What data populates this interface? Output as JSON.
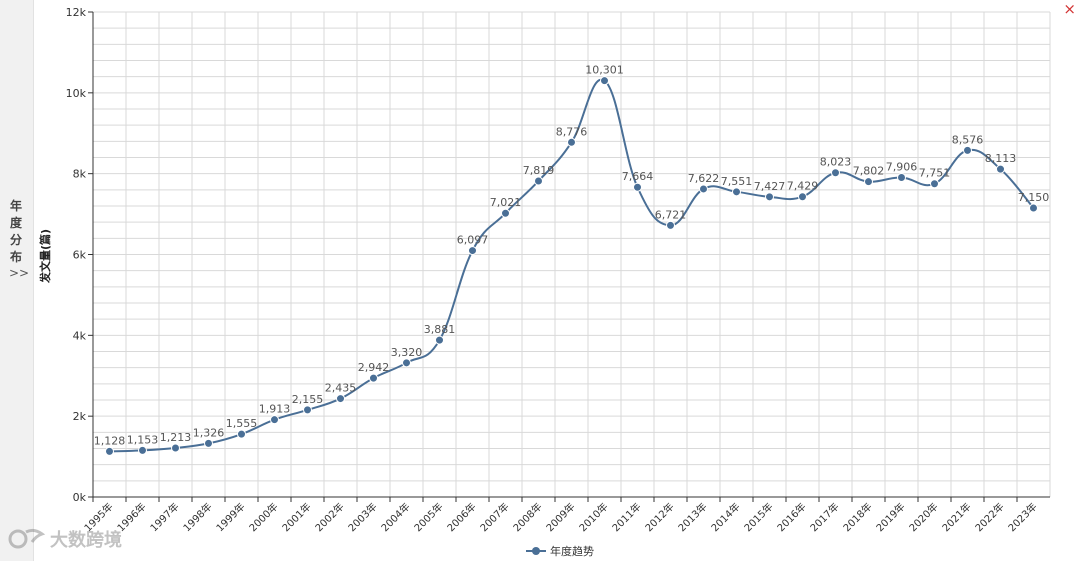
{
  "side_tab": {
    "label": "年度分布",
    "arrow": ">>"
  },
  "close_icon": "×",
  "watermark": {
    "icon": "logo-icon",
    "text": "大数跨境"
  },
  "colors": {
    "line": "#4a6f96",
    "grid": "#d9d9d9",
    "axis": "#333333"
  },
  "chart_data": {
    "type": "line",
    "ylabel": "发文量(篇)",
    "xlabel": "",
    "ylim": [
      0,
      12000
    ],
    "y_ticks": [
      "0k",
      "2k",
      "4k",
      "6k",
      "8k",
      "10k",
      "12k"
    ],
    "y_tick_values": [
      0,
      2000,
      4000,
      6000,
      8000,
      10000,
      12000
    ],
    "grid": true,
    "legend_position": "bottom-center",
    "categories": [
      "1995年",
      "1996年",
      "1997年",
      "1998年",
      "1999年",
      "2000年",
      "2001年",
      "2002年",
      "2003年",
      "2004年",
      "2005年",
      "2006年",
      "2007年",
      "2008年",
      "2009年",
      "2010年",
      "2011年",
      "2012年",
      "2013年",
      "2014年",
      "2015年",
      "2016年",
      "2017年",
      "2018年",
      "2019年",
      "2020年",
      "2021年",
      "2022年",
      "2023年"
    ],
    "series": [
      {
        "name": "年度趋势",
        "values": [
          1128,
          1153,
          1213,
          1326,
          1555,
          1913,
          2155,
          2435,
          2942,
          3320,
          3881,
          6097,
          7021,
          7819,
          8776,
          10301,
          7664,
          6721,
          7622,
          7551,
          7427,
          7429,
          8023,
          7802,
          7906,
          7751,
          8576,
          8113,
          7150
        ],
        "labels": [
          "1,128",
          "1,153",
          "1,213",
          "1,326",
          "1,555",
          "1,913",
          "2,155",
          "2,435",
          "2,942",
          "3,320",
          "3,881",
          "6,097",
          "7,021",
          "7,819",
          "8,776",
          "10,301",
          "7,664",
          "6,721",
          "7,622",
          "7,551",
          "7,427",
          "7,429",
          "8,023",
          "7,802",
          "7,906",
          "7,751",
          "8,576",
          "8,113",
          "7,150"
        ]
      }
    ]
  }
}
